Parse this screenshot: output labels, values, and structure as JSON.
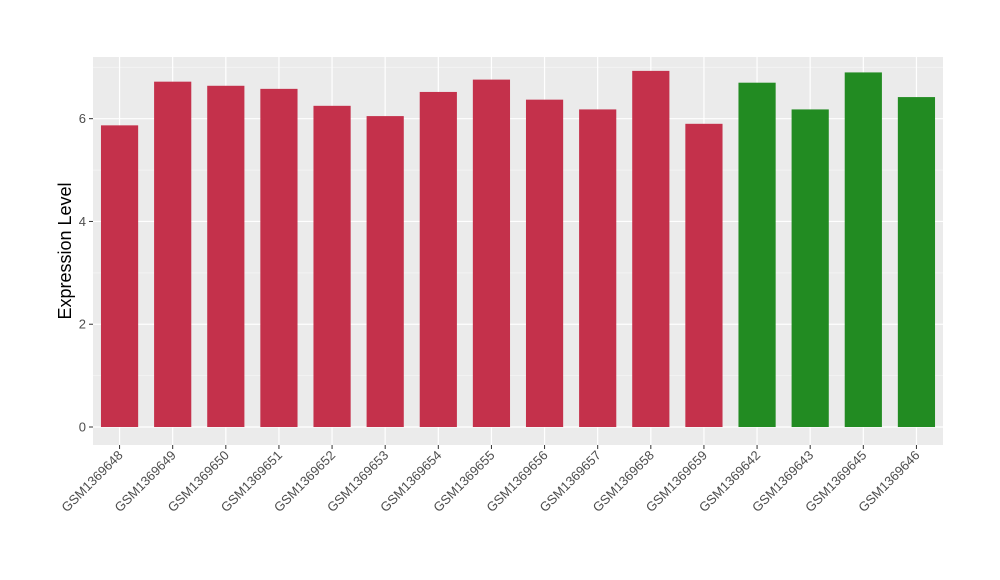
{
  "chart_data": {
    "type": "bar",
    "title": "",
    "xlabel": "",
    "ylabel": "Expression Level",
    "ylim": [
      -0.35,
      7.2
    ],
    "yticks": [
      0,
      2,
      4,
      6
    ],
    "grid": true,
    "legend": "none",
    "categories": [
      "GSM1369648",
      "GSM1369649",
      "GSM1369650",
      "GSM1369651",
      "GSM1369652",
      "GSM1369653",
      "GSM1369654",
      "GSM1369655",
      "GSM1369656",
      "GSM1369657",
      "GSM1369658",
      "GSM1369659",
      "GSM1369642",
      "GSM1369643",
      "GSM1369645",
      "GSM1369646"
    ],
    "values": [
      5.87,
      6.72,
      6.64,
      6.58,
      6.25,
      6.05,
      6.52,
      6.76,
      6.37,
      6.18,
      6.93,
      5.9,
      6.7,
      6.18,
      6.9,
      6.42
    ],
    "groups": [
      "red",
      "red",
      "red",
      "red",
      "red",
      "red",
      "red",
      "red",
      "red",
      "red",
      "red",
      "red",
      "green",
      "green",
      "green",
      "green"
    ],
    "colors": {
      "red": "#c4314b",
      "green": "#228b22",
      "panel": "#ebebeb",
      "grid_major": "#ffffff",
      "grid_minor": "#f5f5f5"
    }
  }
}
